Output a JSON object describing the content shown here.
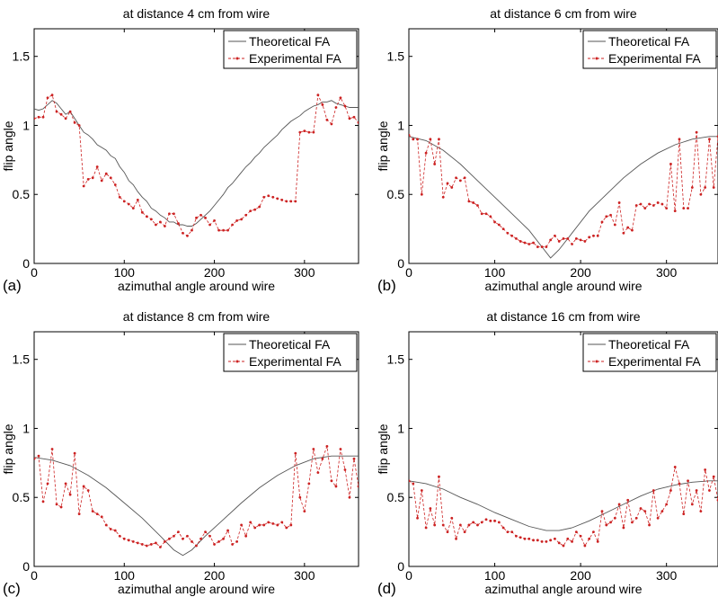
{
  "chart_data": [
    {
      "type": "line",
      "panel_label": "(a)",
      "title": "at distance 4 cm from wire",
      "xlabel": "azimuthal angle around wire",
      "ylabel": "flip angle",
      "xlim": [
        0,
        360
      ],
      "ylim": [
        0,
        1.7
      ],
      "xticks": [
        "0",
        "100",
        "200",
        "300"
      ],
      "yticks": [
        "0",
        "0.5",
        "1",
        "1.5"
      ],
      "legend_position": "top-right",
      "series": [
        {
          "name": "Theoretical FA",
          "color": "#555555",
          "x": [
            0,
            5,
            10,
            15,
            20,
            25,
            30,
            35,
            40,
            45,
            50,
            55,
            60,
            65,
            70,
            75,
            80,
            85,
            90,
            95,
            100,
            105,
            110,
            115,
            120,
            125,
            130,
            135,
            140,
            145,
            150,
            155,
            160,
            165,
            170,
            175,
            180,
            185,
            190,
            195,
            200,
            205,
            210,
            215,
            220,
            225,
            230,
            235,
            240,
            245,
            250,
            255,
            260,
            265,
            270,
            275,
            280,
            285,
            290,
            295,
            300,
            305,
            310,
            315,
            320,
            325,
            330,
            335,
            340,
            345,
            350,
            355,
            360
          ],
          "y": [
            1.12,
            1.11,
            1.12,
            1.15,
            1.18,
            1.16,
            1.12,
            1.08,
            1.1,
            1.05,
            1.0,
            0.95,
            0.93,
            0.9,
            0.86,
            0.84,
            0.82,
            0.78,
            0.76,
            0.7,
            0.66,
            0.6,
            0.57,
            0.52,
            0.48,
            0.45,
            0.4,
            0.38,
            0.35,
            0.33,
            0.3,
            0.3,
            0.28,
            0.28,
            0.27,
            0.27,
            0.29,
            0.32,
            0.35,
            0.38,
            0.42,
            0.46,
            0.5,
            0.55,
            0.58,
            0.62,
            0.66,
            0.7,
            0.73,
            0.77,
            0.8,
            0.84,
            0.87,
            0.9,
            0.93,
            0.97,
            1.0,
            1.03,
            1.05,
            1.07,
            1.1,
            1.12,
            1.14,
            1.15,
            1.17,
            1.17,
            1.18,
            1.16,
            1.15,
            1.14,
            1.13,
            1.13,
            1.13
          ]
        },
        {
          "name": "Experimental FA",
          "color": "#cc2222",
          "x": [
            0,
            5,
            10,
            15,
            20,
            25,
            30,
            35,
            40,
            45,
            50,
            55,
            60,
            65,
            70,
            75,
            80,
            85,
            90,
            95,
            100,
            105,
            110,
            115,
            120,
            125,
            130,
            135,
            140,
            145,
            150,
            155,
            160,
            165,
            170,
            175,
            180,
            185,
            190,
            195,
            200,
            205,
            210,
            215,
            220,
            225,
            230,
            235,
            240,
            245,
            250,
            255,
            260,
            265,
            270,
            275,
            280,
            285,
            290,
            295,
            300,
            305,
            310,
            315,
            320,
            325,
            330,
            335,
            340,
            345,
            350,
            355,
            360
          ],
          "y": [
            1.05,
            1.06,
            1.06,
            1.2,
            1.22,
            1.1,
            1.08,
            1.05,
            1.1,
            1.02,
            1.0,
            0.56,
            0.61,
            0.62,
            0.7,
            0.6,
            0.65,
            0.62,
            0.57,
            0.48,
            0.45,
            0.43,
            0.4,
            0.46,
            0.37,
            0.34,
            0.32,
            0.28,
            0.3,
            0.27,
            0.36,
            0.36,
            0.29,
            0.22,
            0.2,
            0.24,
            0.33,
            0.35,
            0.33,
            0.28,
            0.31,
            0.24,
            0.24,
            0.24,
            0.28,
            0.31,
            0.32,
            0.35,
            0.38,
            0.39,
            0.41,
            0.48,
            0.49,
            0.48,
            0.47,
            0.46,
            0.45,
            0.45,
            0.45,
            0.95,
            0.96,
            0.95,
            0.95,
            1.22,
            1.15,
            1.04,
            1.01,
            1.13,
            1.2,
            1.14,
            1.05,
            1.06,
            1.02
          ]
        }
      ]
    },
    {
      "type": "line",
      "panel_label": "(b)",
      "title": "at distance 6 cm from wire",
      "xlabel": "azimuthal angle around wire",
      "ylabel": "flip angle",
      "xlim": [
        0,
        360
      ],
      "ylim": [
        0,
        1.7
      ],
      "xticks": [
        "0",
        "100",
        "200",
        "300"
      ],
      "yticks": [
        "0",
        "0.5",
        "1",
        "1.5"
      ],
      "legend_position": "top-right",
      "series": [
        {
          "name": "Theoretical FA",
          "color": "#555555",
          "x": [
            0,
            20,
            40,
            60,
            80,
            100,
            120,
            140,
            155,
            165,
            175,
            190,
            210,
            230,
            250,
            270,
            290,
            310,
            330,
            350,
            360
          ],
          "y": [
            0.92,
            0.89,
            0.82,
            0.72,
            0.6,
            0.48,
            0.36,
            0.24,
            0.12,
            0.04,
            0.1,
            0.22,
            0.38,
            0.5,
            0.62,
            0.72,
            0.8,
            0.86,
            0.9,
            0.92,
            0.92
          ]
        },
        {
          "name": "Experimental FA",
          "color": "#cc2222",
          "x": [
            0,
            5,
            10,
            15,
            20,
            25,
            30,
            35,
            40,
            45,
            50,
            55,
            60,
            65,
            70,
            75,
            80,
            85,
            90,
            95,
            100,
            105,
            110,
            115,
            120,
            125,
            130,
            135,
            140,
            145,
            150,
            155,
            160,
            165,
            170,
            175,
            180,
            185,
            190,
            195,
            200,
            205,
            210,
            215,
            220,
            225,
            230,
            235,
            240,
            245,
            250,
            255,
            260,
            265,
            270,
            275,
            280,
            285,
            290,
            295,
            300,
            305,
            310,
            315,
            320,
            325,
            330,
            335,
            340,
            345,
            350,
            355,
            360
          ],
          "y": [
            0.93,
            0.9,
            0.9,
            0.5,
            0.8,
            0.9,
            0.72,
            0.9,
            0.48,
            0.58,
            0.55,
            0.62,
            0.6,
            0.62,
            0.45,
            0.44,
            0.42,
            0.36,
            0.36,
            0.34,
            0.3,
            0.28,
            0.25,
            0.22,
            0.2,
            0.18,
            0.16,
            0.15,
            0.14,
            0.15,
            0.12,
            0.12,
            0.12,
            0.17,
            0.2,
            0.16,
            0.18,
            0.18,
            0.14,
            0.18,
            0.17,
            0.16,
            0.19,
            0.2,
            0.2,
            0.3,
            0.34,
            0.35,
            0.28,
            0.44,
            0.22,
            0.26,
            0.24,
            0.42,
            0.43,
            0.4,
            0.43,
            0.42,
            0.44,
            0.43,
            0.4,
            0.72,
            0.38,
            0.9,
            0.4,
            0.4,
            0.55,
            0.95,
            0.5,
            0.55,
            0.9,
            0.55,
            0.92
          ]
        }
      ]
    },
    {
      "type": "line",
      "panel_label": "(c)",
      "title": "at distance 8 cm from wire",
      "xlabel": "azimuthal angle around wire",
      "ylabel": "flip angle",
      "xlim": [
        0,
        360
      ],
      "ylim": [
        0,
        1.7
      ],
      "xticks": [
        "0",
        "100",
        "200",
        "300"
      ],
      "yticks": [
        "0",
        "0.5",
        "1",
        "1.5"
      ],
      "legend_position": "top-right",
      "series": [
        {
          "name": "Theoretical FA",
          "color": "#555555",
          "x": [
            0,
            20,
            40,
            60,
            80,
            100,
            120,
            140,
            155,
            165,
            175,
            190,
            210,
            230,
            250,
            270,
            290,
            310,
            330,
            350,
            360
          ],
          "y": [
            0.79,
            0.77,
            0.73,
            0.66,
            0.57,
            0.46,
            0.35,
            0.22,
            0.12,
            0.08,
            0.12,
            0.22,
            0.34,
            0.46,
            0.57,
            0.66,
            0.73,
            0.78,
            0.8,
            0.8,
            0.8
          ]
        },
        {
          "name": "Experimental FA",
          "color": "#cc2222",
          "x": [
            0,
            5,
            10,
            15,
            20,
            25,
            30,
            35,
            40,
            45,
            50,
            55,
            60,
            65,
            70,
            75,
            80,
            85,
            90,
            95,
            100,
            105,
            110,
            115,
            120,
            125,
            130,
            135,
            140,
            145,
            150,
            155,
            160,
            165,
            170,
            175,
            180,
            185,
            190,
            195,
            200,
            205,
            210,
            215,
            220,
            225,
            230,
            235,
            240,
            245,
            250,
            255,
            260,
            265,
            270,
            275,
            280,
            285,
            290,
            295,
            300,
            305,
            310,
            315,
            320,
            325,
            330,
            335,
            340,
            345,
            350,
            355,
            360
          ],
          "y": [
            0.78,
            0.8,
            0.47,
            0.6,
            0.85,
            0.45,
            0.43,
            0.6,
            0.52,
            0.82,
            0.38,
            0.58,
            0.55,
            0.4,
            0.38,
            0.36,
            0.3,
            0.27,
            0.26,
            0.22,
            0.2,
            0.19,
            0.18,
            0.17,
            0.16,
            0.15,
            0.16,
            0.17,
            0.14,
            0.18,
            0.2,
            0.22,
            0.25,
            0.2,
            0.22,
            0.18,
            0.15,
            0.2,
            0.25,
            0.22,
            0.16,
            0.18,
            0.2,
            0.26,
            0.16,
            0.18,
            0.3,
            0.22,
            0.32,
            0.28,
            0.3,
            0.3,
            0.32,
            0.31,
            0.3,
            0.32,
            0.28,
            0.3,
            0.82,
            0.5,
            0.4,
            0.6,
            0.85,
            0.68,
            0.78,
            0.87,
            0.62,
            0.58,
            0.85,
            0.7,
            0.5,
            0.78,
            0.58
          ]
        }
      ]
    },
    {
      "type": "line",
      "panel_label": "(d)",
      "title": "at distance 16 cm from wire",
      "xlabel": "azimuthal angle around wire",
      "ylabel": "flip angle",
      "xlim": [
        0,
        360
      ],
      "ylim": [
        0,
        1.7
      ],
      "xticks": [
        "0",
        "100",
        "200",
        "300"
      ],
      "yticks": [
        "0",
        "0.5",
        "1",
        "1.5"
      ],
      "legend_position": "top-right",
      "series": [
        {
          "name": "Theoretical FA",
          "color": "#555555",
          "x": [
            0,
            20,
            40,
            60,
            80,
            100,
            120,
            140,
            160,
            175,
            190,
            210,
            230,
            250,
            270,
            290,
            310,
            330,
            350,
            360
          ],
          "y": [
            0.62,
            0.6,
            0.56,
            0.5,
            0.45,
            0.39,
            0.34,
            0.29,
            0.26,
            0.26,
            0.28,
            0.33,
            0.39,
            0.45,
            0.51,
            0.56,
            0.59,
            0.61,
            0.62,
            0.62
          ]
        },
        {
          "name": "Experimental FA",
          "color": "#cc2222",
          "x": [
            0,
            5,
            10,
            15,
            20,
            25,
            30,
            35,
            40,
            45,
            50,
            55,
            60,
            65,
            70,
            75,
            80,
            85,
            90,
            95,
            100,
            105,
            110,
            115,
            120,
            125,
            130,
            135,
            140,
            145,
            150,
            155,
            160,
            165,
            170,
            175,
            180,
            185,
            190,
            195,
            200,
            205,
            210,
            215,
            220,
            225,
            230,
            235,
            240,
            245,
            250,
            255,
            260,
            265,
            270,
            275,
            280,
            285,
            290,
            295,
            300,
            305,
            310,
            315,
            320,
            325,
            330,
            335,
            340,
            345,
            350,
            355,
            360
          ],
          "y": [
            0.62,
            0.6,
            0.35,
            0.55,
            0.28,
            0.42,
            0.3,
            0.65,
            0.3,
            0.25,
            0.35,
            0.2,
            0.3,
            0.25,
            0.3,
            0.32,
            0.3,
            0.32,
            0.34,
            0.33,
            0.33,
            0.32,
            0.28,
            0.25,
            0.25,
            0.22,
            0.21,
            0.2,
            0.2,
            0.19,
            0.19,
            0.18,
            0.18,
            0.19,
            0.2,
            0.17,
            0.15,
            0.2,
            0.18,
            0.25,
            0.22,
            0.15,
            0.2,
            0.25,
            0.18,
            0.4,
            0.3,
            0.32,
            0.35,
            0.45,
            0.28,
            0.48,
            0.32,
            0.35,
            0.42,
            0.4,
            0.3,
            0.55,
            0.35,
            0.4,
            0.45,
            0.55,
            0.72,
            0.6,
            0.38,
            0.62,
            0.45,
            0.55,
            0.4,
            0.7,
            0.55,
            0.65,
            0.48
          ]
        }
      ]
    }
  ]
}
